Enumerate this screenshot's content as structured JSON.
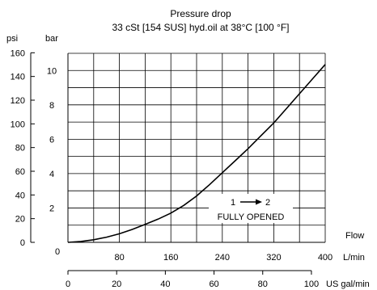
{
  "chart_data": {
    "type": "line",
    "title": "Pressure drop",
    "subtitle": "33 cSt [154 SUS] hyd.oil at 38°C [100 °F]",
    "ylabel_primary": "bar",
    "ylabel_secondary": "psi",
    "xlabel": "Flow",
    "xunit_primary": "L/min",
    "xunit_secondary": "US gal/min",
    "xlim": [
      0,
      400
    ],
    "ylim": [
      0,
      11
    ],
    "grid": true,
    "x_ticks_lmin": [
      0,
      80,
      160,
      240,
      320,
      400
    ],
    "x_ticks_gal": [
      0,
      20,
      40,
      60,
      80,
      100
    ],
    "y_ticks_bar": [
      2,
      4,
      6,
      8,
      10
    ],
    "y_ticks_psi": [
      0,
      20,
      40,
      60,
      80,
      100,
      120,
      140,
      160
    ],
    "annotation": {
      "line1_from": "1",
      "line1_to": "2",
      "line2": "FULLY OPENED"
    },
    "series": [
      {
        "x": [
          0,
          20,
          40,
          60,
          80,
          100,
          120,
          140,
          160,
          180,
          200,
          220,
          240,
          260,
          280,
          300,
          320,
          340,
          360,
          380,
          400
        ],
        "y": [
          0,
          0.05,
          0.15,
          0.3,
          0.5,
          0.75,
          1.05,
          1.35,
          1.7,
          2.15,
          2.7,
          3.35,
          4.05,
          4.75,
          5.45,
          6.2,
          6.95,
          7.8,
          8.65,
          9.5,
          10.35
        ]
      }
    ]
  }
}
